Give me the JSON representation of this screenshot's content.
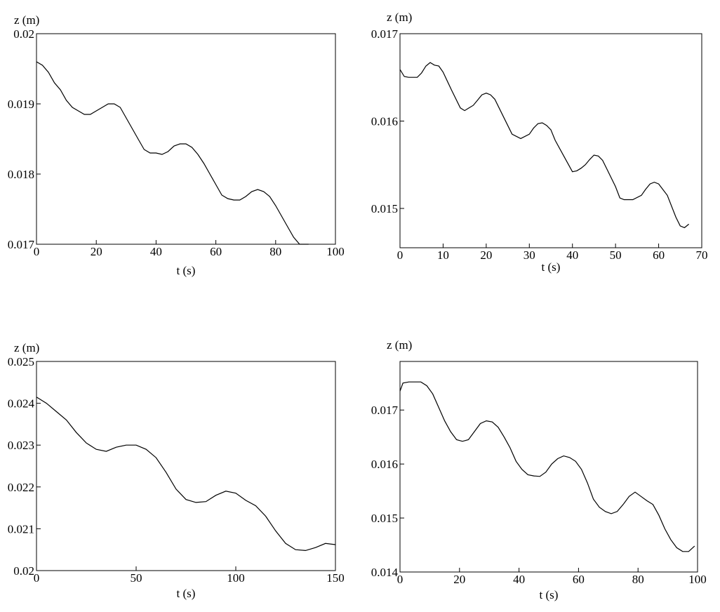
{
  "chart_data": [
    {
      "type": "line",
      "title": "",
      "xlabel": "t (s)",
      "ylabel": "z (m)",
      "xlim": [
        0,
        100
      ],
      "ylim": [
        0.017,
        0.02
      ],
      "xticks": [
        0,
        20,
        40,
        60,
        80,
        100
      ],
      "xtick_labels": [
        "0",
        "20",
        "40",
        "60",
        "80",
        "100"
      ],
      "yticks": [
        0.017,
        0.018,
        0.019,
        0.02
      ],
      "ytick_labels": [
        "0.017",
        "0.018",
        "0.019",
        "0.02"
      ],
      "grid": false,
      "series": [
        {
          "color": "#000000",
          "x": [
            0,
            2,
            4,
            6,
            8,
            10,
            12,
            14,
            16,
            18,
            20,
            22,
            24,
            26,
            28,
            30,
            32,
            34,
            36,
            38,
            40,
            42,
            44,
            46,
            48,
            50,
            52,
            54,
            56,
            58,
            60,
            62,
            64,
            66,
            68,
            70,
            72,
            74,
            76,
            78,
            80,
            82,
            84,
            86,
            88,
            90,
            91
          ],
          "y": [
            0.0196,
            0.01955,
            0.01945,
            0.0193,
            0.0192,
            0.01905,
            0.01895,
            0.0189,
            0.01885,
            0.01885,
            0.0189,
            0.01895,
            0.019,
            0.019,
            0.01895,
            0.0188,
            0.01865,
            0.0185,
            0.01835,
            0.0183,
            0.0183,
            0.01828,
            0.01832,
            0.0184,
            0.01843,
            0.01843,
            0.01838,
            0.01828,
            0.01815,
            0.018,
            0.01785,
            0.0177,
            0.01765,
            0.01763,
            0.01763,
            0.01768,
            0.01775,
            0.01778,
            0.01775,
            0.01768,
            0.01755,
            0.0174,
            0.01725,
            0.0171,
            0.017,
            0.017,
            0.017
          ]
        }
      ]
    },
    {
      "type": "line",
      "title": "",
      "xlabel": "t (s)",
      "ylabel": "z (m)",
      "xlim": [
        0,
        70
      ],
      "ylim": [
        0.01455,
        0.017
      ],
      "xticks": [
        0,
        10,
        20,
        30,
        40,
        50,
        60,
        70
      ],
      "xtick_labels": [
        "0",
        "10",
        "20",
        "30",
        "40",
        "50",
        "60",
        "70"
      ],
      "yticks": [
        0.015,
        0.016,
        0.017
      ],
      "ytick_labels": [
        "0.015",
        "0.016",
        "0.017"
      ],
      "grid": false,
      "series": [
        {
          "color": "#000000",
          "x": [
            0,
            1,
            2,
            4,
            5,
            6,
            7,
            8,
            9,
            10,
            12,
            14,
            15,
            16,
            17,
            18,
            19,
            20,
            21,
            22,
            24,
            26,
            28,
            30,
            31,
            32,
            33,
            34,
            35,
            36,
            38,
            40,
            41,
            42,
            43,
            44,
            45,
            46,
            47,
            48,
            50,
            51,
            52,
            54,
            56,
            57,
            58,
            59,
            60,
            62,
            64,
            65,
            66,
            67
          ],
          "y": [
            0.01659,
            0.01651,
            0.0165,
            0.0165,
            0.01655,
            0.01663,
            0.01667,
            0.01664,
            0.01663,
            0.01656,
            0.01635,
            0.01615,
            0.01612,
            0.01615,
            0.01618,
            0.01624,
            0.0163,
            0.01632,
            0.0163,
            0.01625,
            0.01605,
            0.01585,
            0.0158,
            0.01585,
            0.01592,
            0.01597,
            0.01598,
            0.01595,
            0.0159,
            0.01578,
            0.0156,
            0.01542,
            0.01543,
            0.01546,
            0.0155,
            0.01556,
            0.01561,
            0.0156,
            0.01555,
            0.01545,
            0.01525,
            0.01512,
            0.0151,
            0.0151,
            0.01515,
            0.01522,
            0.01528,
            0.0153,
            0.01528,
            0.01515,
            0.0149,
            0.0148,
            0.01478,
            0.01482
          ]
        }
      ]
    },
    {
      "type": "line",
      "title": "",
      "xlabel": "t (s)",
      "ylabel": "z (m)",
      "xlim": [
        0,
        150
      ],
      "ylim": [
        0.02,
        0.025
      ],
      "xticks": [
        0,
        50,
        100,
        150
      ],
      "xtick_labels": [
        "0",
        "50",
        "100",
        "150"
      ],
      "yticks": [
        0.02,
        0.021,
        0.022,
        0.023,
        0.024,
        0.025
      ],
      "ytick_labels": [
        "0.02",
        "0.021",
        "0.022",
        "0.023",
        "0.024",
        "0.025"
      ],
      "grid": false,
      "series": [
        {
          "color": "#000000",
          "x": [
            0,
            5,
            10,
            15,
            20,
            25,
            30,
            35,
            40,
            45,
            50,
            55,
            60,
            65,
            70,
            75,
            80,
            85,
            90,
            95,
            100,
            105,
            110,
            115,
            120,
            125,
            130,
            135,
            140,
            145,
            150
          ],
          "y": [
            0.02415,
            0.024,
            0.0238,
            0.0236,
            0.0233,
            0.02305,
            0.0229,
            0.02285,
            0.02295,
            0.023,
            0.023,
            0.0229,
            0.0227,
            0.02235,
            0.02195,
            0.0217,
            0.02163,
            0.02165,
            0.0218,
            0.0219,
            0.02185,
            0.02168,
            0.02155,
            0.0213,
            0.02095,
            0.02065,
            0.0205,
            0.02048,
            0.02055,
            0.02065,
            0.02062
          ]
        }
      ]
    },
    {
      "type": "line",
      "title": "",
      "xlabel": "t (s)",
      "ylabel": "z (m)",
      "xlim": [
        0,
        100
      ],
      "ylim": [
        0.014,
        0.0179
      ],
      "xticks": [
        0,
        20,
        40,
        60,
        80,
        100
      ],
      "xtick_labels": [
        "0",
        "20",
        "40",
        "60",
        "80",
        "100"
      ],
      "yticks": [
        0.014,
        0.015,
        0.016,
        0.017
      ],
      "ytick_labels": [
        "0.014",
        "0.015",
        "0.016",
        "0.017"
      ],
      "grid": false,
      "series": [
        {
          "color": "#000000",
          "x": [
            0,
            1,
            3,
            5,
            7,
            9,
            11,
            13,
            15,
            17,
            19,
            21,
            23,
            25,
            27,
            29,
            31,
            33,
            35,
            37,
            39,
            41,
            43,
            45,
            47,
            49,
            51,
            53,
            55,
            57,
            59,
            61,
            63,
            65,
            67,
            69,
            71,
            73,
            75,
            77,
            79,
            81,
            83,
            85,
            87,
            89,
            91,
            93,
            95,
            97,
            99
          ],
          "y": [
            0.01735,
            0.0175,
            0.01752,
            0.01752,
            0.01752,
            0.01745,
            0.0173,
            0.01705,
            0.0168,
            0.0166,
            0.01645,
            0.01642,
            0.01645,
            0.0166,
            0.01675,
            0.0168,
            0.01678,
            0.01668,
            0.0165,
            0.0163,
            0.01605,
            0.0159,
            0.0158,
            0.01578,
            0.01577,
            0.01585,
            0.016,
            0.0161,
            0.01615,
            0.01612,
            0.01605,
            0.0159,
            0.01565,
            0.01535,
            0.0152,
            0.01512,
            0.01508,
            0.01512,
            0.01525,
            0.0154,
            0.01548,
            0.0154,
            0.01532,
            0.01525,
            0.01505,
            0.0148,
            0.0146,
            0.01445,
            0.01438,
            0.01438,
            0.01448
          ]
        }
      ]
    }
  ]
}
